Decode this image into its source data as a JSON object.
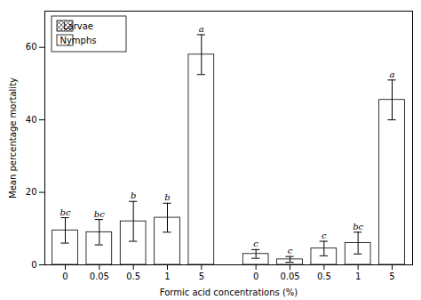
{
  "chart_data": {
    "type": "bar",
    "xlabel": "Formic acid concentrations (%)",
    "ylabel": "Mean percentage mortality",
    "categories": [
      "0",
      "0.05",
      "0.5",
      "1",
      "5"
    ],
    "series": [
      {
        "name": "Larvae",
        "color": "white",
        "values": [
          9.5,
          9.0,
          12.0,
          13.0,
          58.0
        ],
        "errors": [
          3.5,
          3.5,
          5.5,
          4.0,
          5.5
        ],
        "labels": [
          "bc",
          "bc",
          "b",
          "b",
          "a"
        ]
      },
      {
        "name": "Nymphs",
        "color": "white",
        "values": [
          3.0,
          1.5,
          4.5,
          6.0,
          45.5
        ],
        "errors": [
          1.2,
          0.8,
          2.0,
          3.0,
          5.5
        ],
        "labels": [
          "c",
          "c",
          "c",
          "bc",
          "a"
        ]
      }
    ],
    "ylim": [
      0,
      70
    ],
    "yticks": [
      0,
      20,
      40,
      60
    ],
    "legend": "upper left"
  }
}
